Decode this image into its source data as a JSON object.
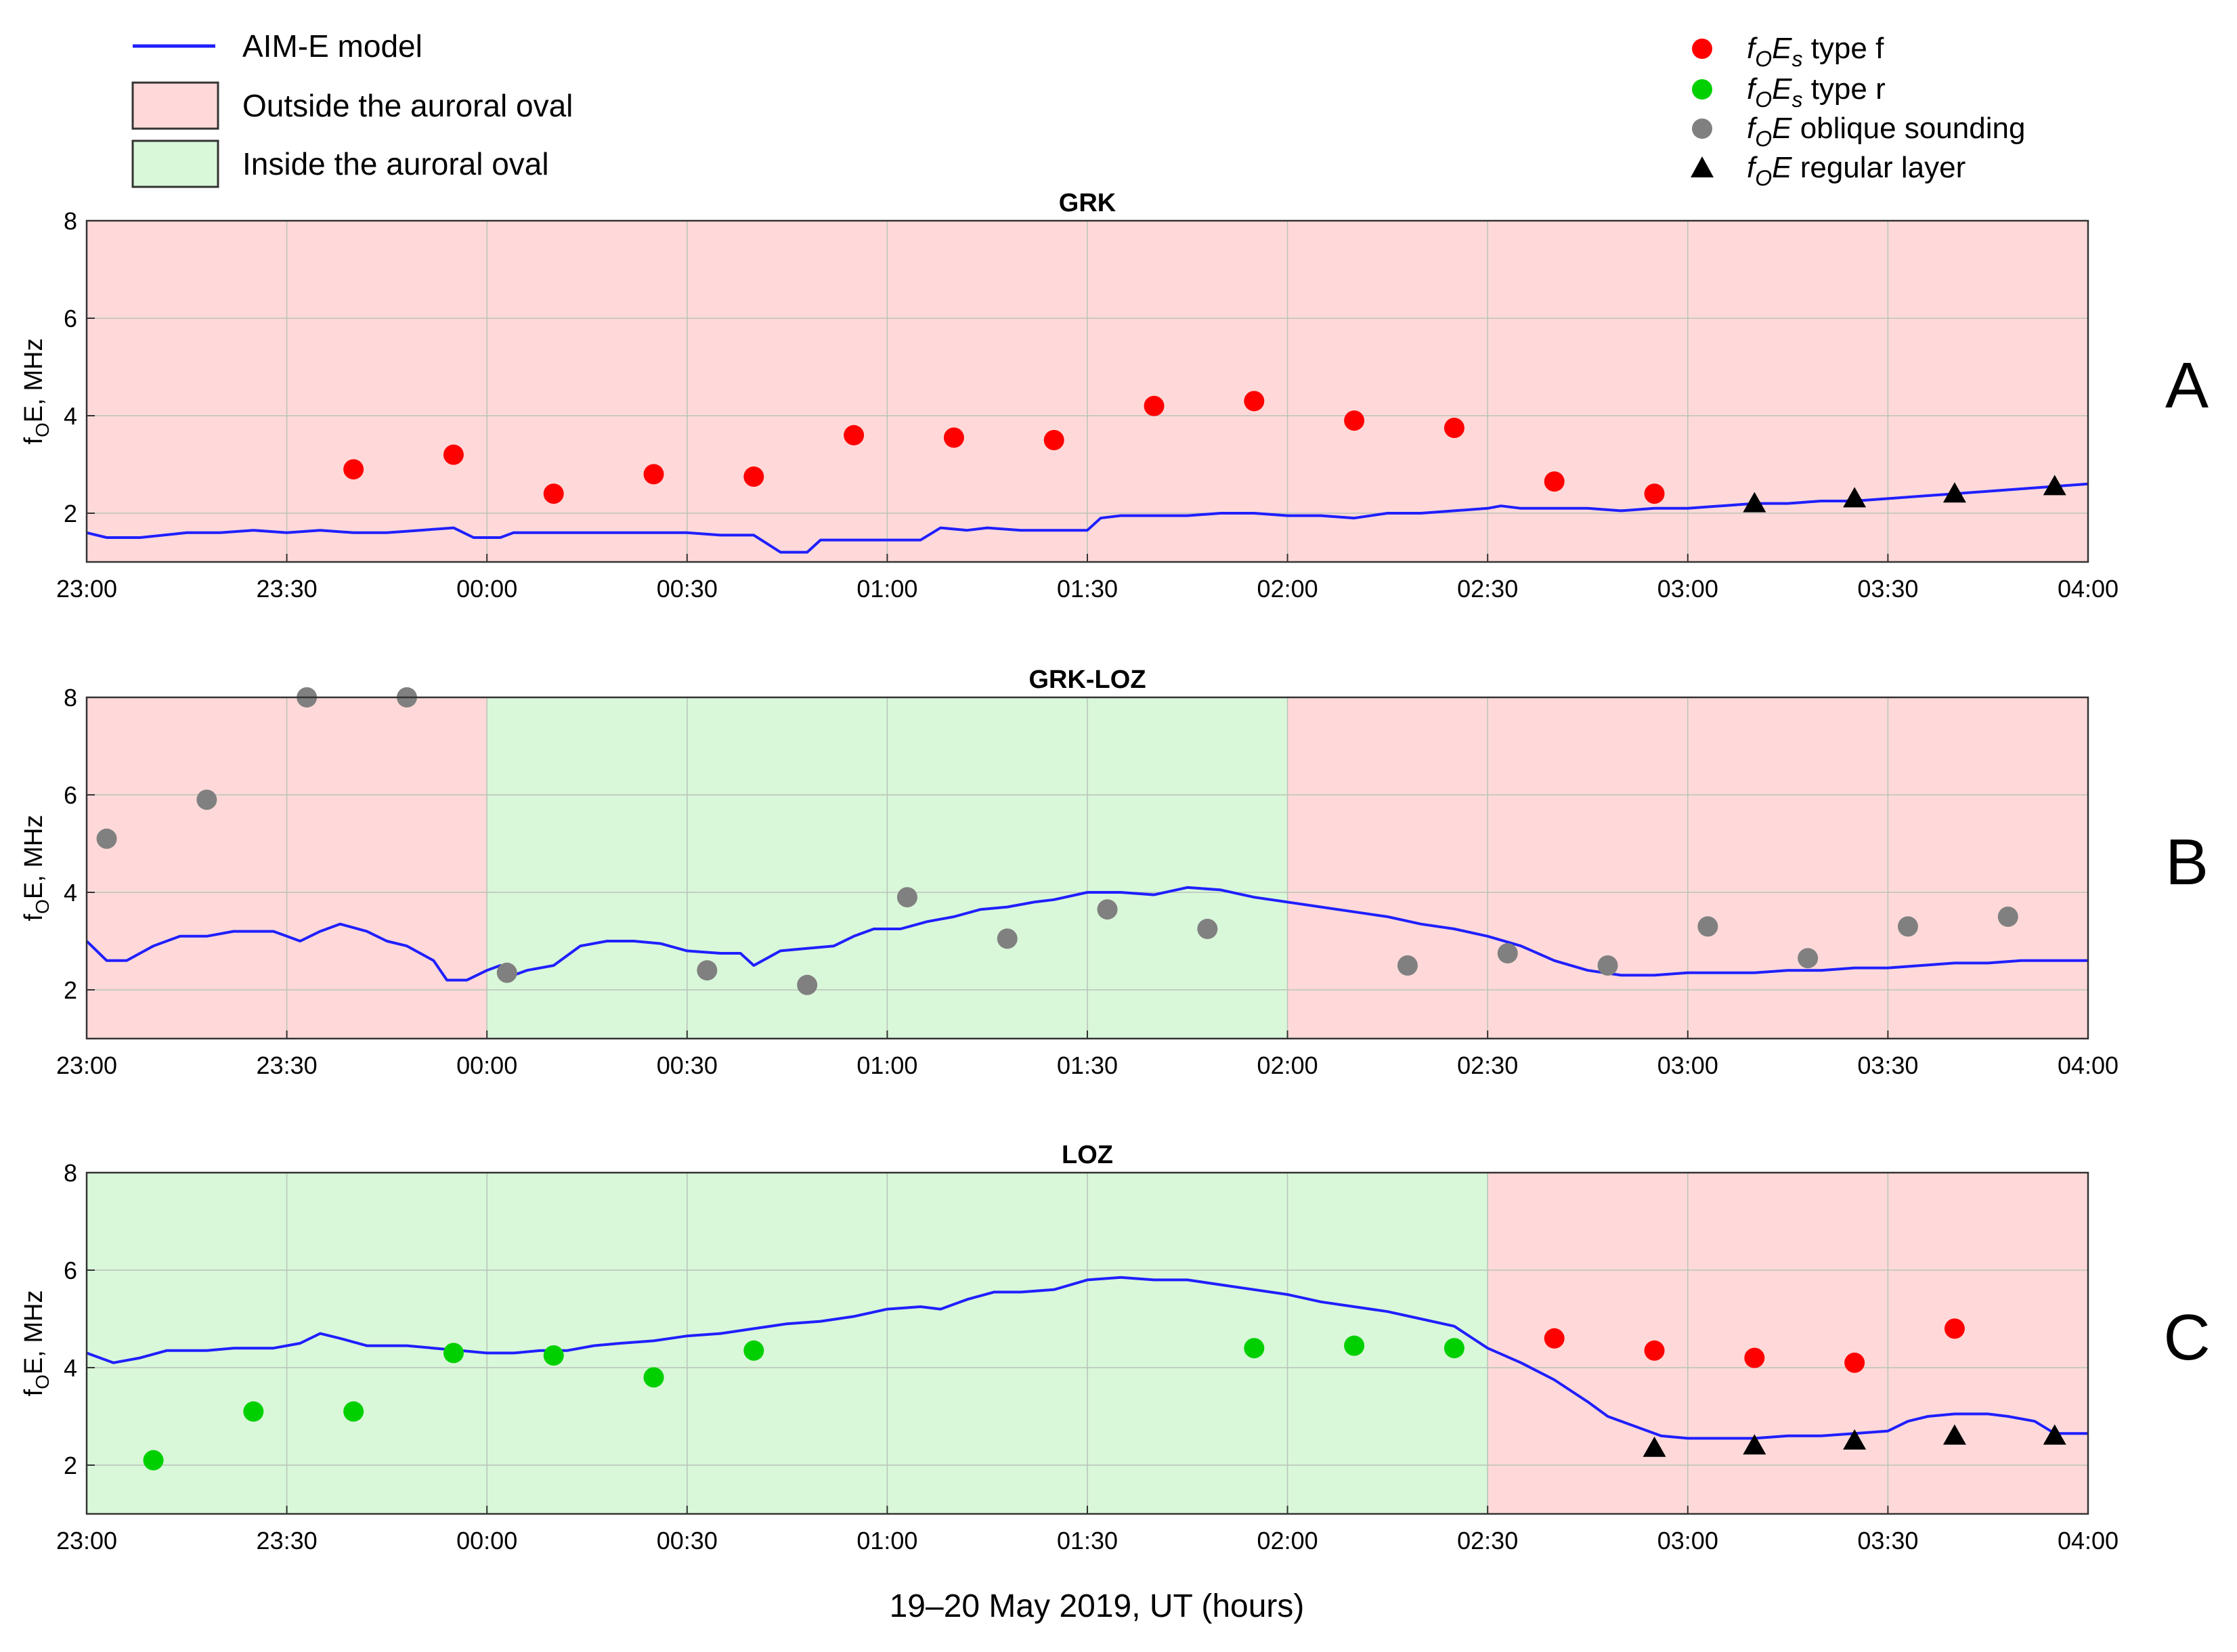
{
  "figure": {
    "xlabel": "19–20 May 2019, UT (hours)",
    "ylabel_prefix": "f",
    "ylabel_sub": "O",
    "ylabel_suffix": "E, MHz"
  },
  "legend_left": {
    "items": [
      {
        "kind": "line",
        "label": "AIM-E model",
        "color": "#1f1fff"
      },
      {
        "kind": "box",
        "label": "Outside the auroral oval",
        "color": "#ffd9d9"
      },
      {
        "kind": "box",
        "label": "Inside the auroral oval",
        "color": "#d9f7d9"
      }
    ]
  },
  "legend_right": {
    "items": [
      {
        "marker": "circle",
        "color": "#ff0000",
        "f": "f",
        "fsub": "O",
        "E": "E",
        "esub": "s",
        "label": " type f"
      },
      {
        "marker": "circle",
        "color": "#00d000",
        "f": "f",
        "fsub": "O",
        "E": "E",
        "esub": "s",
        "label": " type r"
      },
      {
        "marker": "circle",
        "color": "#808080",
        "f": "f",
        "fsub": "O",
        "E": "E",
        "esub": "",
        "label": " oblique sounding"
      },
      {
        "marker": "triangle",
        "color": "#000000",
        "f": "f",
        "fsub": "O",
        "E": "E",
        "esub": "",
        "label": " regular layer"
      }
    ]
  },
  "colors": {
    "outside": "#ffd9d9",
    "inside": "#d9f7d9",
    "model": "#1f1fff",
    "type_f": "#ff0000",
    "type_r": "#00d000",
    "oblique": "#808080",
    "regular": "#000000"
  },
  "chart_data": [
    {
      "type": "scatter",
      "title": "GRK",
      "panel_label": "A",
      "x_unit": "minutes after 23:00",
      "xlim": [
        0,
        300
      ],
      "ylim": [
        1,
        8
      ],
      "yticks": [
        2,
        4,
        6,
        8
      ],
      "xticks": [
        "23:00",
        "23:30",
        "00:00",
        "00:30",
        "01:00",
        "01:30",
        "02:00",
        "02:30",
        "03:00",
        "03:30",
        "04:00"
      ],
      "regions": [
        {
          "x0": 0,
          "x1": 300,
          "zone": "outside"
        }
      ],
      "model": [
        [
          0,
          1.6
        ],
        [
          3,
          1.5
        ],
        [
          8,
          1.5
        ],
        [
          15,
          1.6
        ],
        [
          20,
          1.6
        ],
        [
          25,
          1.65
        ],
        [
          30,
          1.6
        ],
        [
          35,
          1.65
        ],
        [
          40,
          1.6
        ],
        [
          45,
          1.6
        ],
        [
          50,
          1.65
        ],
        [
          55,
          1.7
        ],
        [
          58,
          1.5
        ],
        [
          62,
          1.5
        ],
        [
          64,
          1.6
        ],
        [
          68,
          1.6
        ],
        [
          75,
          1.6
        ],
        [
          85,
          1.6
        ],
        [
          90,
          1.6
        ],
        [
          95,
          1.55
        ],
        [
          100,
          1.55
        ],
        [
          104,
          1.2
        ],
        [
          108,
          1.2
        ],
        [
          110,
          1.45
        ],
        [
          115,
          1.45
        ],
        [
          120,
          1.45
        ],
        [
          125,
          1.45
        ],
        [
          128,
          1.7
        ],
        [
          132,
          1.65
        ],
        [
          135,
          1.7
        ],
        [
          140,
          1.65
        ],
        [
          145,
          1.65
        ],
        [
          150,
          1.65
        ],
        [
          152,
          1.9
        ],
        [
          155,
          1.95
        ],
        [
          160,
          1.95
        ],
        [
          165,
          1.95
        ],
        [
          170,
          2.0
        ],
        [
          175,
          2.0
        ],
        [
          180,
          1.95
        ],
        [
          185,
          1.95
        ],
        [
          190,
          1.9
        ],
        [
          195,
          2.0
        ],
        [
          200,
          2.0
        ],
        [
          205,
          2.05
        ],
        [
          210,
          2.1
        ],
        [
          212,
          2.15
        ],
        [
          215,
          2.1
        ],
        [
          220,
          2.1
        ],
        [
          225,
          2.1
        ],
        [
          230,
          2.05
        ],
        [
          235,
          2.1
        ],
        [
          240,
          2.1
        ],
        [
          245,
          2.15
        ],
        [
          250,
          2.2
        ],
        [
          255,
          2.2
        ],
        [
          260,
          2.25
        ],
        [
          265,
          2.25
        ],
        [
          270,
          2.3
        ],
        [
          275,
          2.35
        ],
        [
          280,
          2.4
        ],
        [
          285,
          2.45
        ],
        [
          290,
          2.5
        ],
        [
          295,
          2.55
        ],
        [
          300,
          2.6
        ]
      ],
      "series": [
        {
          "name": "type_f",
          "points": [
            [
              40,
              2.9
            ],
            [
              55,
              3.2
            ],
            [
              70,
              2.4
            ],
            [
              85,
              2.8
            ],
            [
              100,
              2.75
            ],
            [
              115,
              3.6
            ],
            [
              130,
              3.55
            ],
            [
              145,
              3.5
            ],
            [
              160,
              4.2
            ],
            [
              175,
              4.3
            ],
            [
              190,
              3.9
            ],
            [
              205,
              3.75
            ],
            [
              220,
              2.65
            ],
            [
              235,
              2.4
            ]
          ]
        },
        {
          "name": "regular",
          "points": [
            [
              250,
              2.2
            ],
            [
              265,
              2.3
            ],
            [
              280,
              2.4
            ],
            [
              295,
              2.55
            ]
          ]
        }
      ]
    },
    {
      "type": "scatter",
      "title": "GRK-LOZ",
      "panel_label": "B",
      "x_unit": "minutes after 23:00",
      "xlim": [
        0,
        300
      ],
      "ylim": [
        1,
        8
      ],
      "yticks": [
        2,
        4,
        6,
        8
      ],
      "xticks": [
        "23:00",
        "23:30",
        "00:00",
        "00:30",
        "01:00",
        "01:30",
        "02:00",
        "02:30",
        "03:00",
        "03:30",
        "04:00"
      ],
      "regions": [
        {
          "x0": 0,
          "x1": 60,
          "zone": "outside"
        },
        {
          "x0": 60,
          "x1": 180,
          "zone": "inside"
        },
        {
          "x0": 180,
          "x1": 300,
          "zone": "outside"
        }
      ],
      "model": [
        [
          0,
          3.0
        ],
        [
          3,
          2.6
        ],
        [
          6,
          2.6
        ],
        [
          10,
          2.9
        ],
        [
          14,
          3.1
        ],
        [
          18,
          3.1
        ],
        [
          22,
          3.2
        ],
        [
          28,
          3.2
        ],
        [
          30,
          3.1
        ],
        [
          32,
          3.0
        ],
        [
          35,
          3.2
        ],
        [
          38,
          3.35
        ],
        [
          42,
          3.2
        ],
        [
          45,
          3.0
        ],
        [
          48,
          2.9
        ],
        [
          52,
          2.6
        ],
        [
          54,
          2.2
        ],
        [
          57,
          2.2
        ],
        [
          60,
          2.4
        ],
        [
          62,
          2.5
        ],
        [
          64,
          2.3
        ],
        [
          66,
          2.4
        ],
        [
          70,
          2.5
        ],
        [
          74,
          2.9
        ],
        [
          78,
          3.0
        ],
        [
          82,
          3.0
        ],
        [
          86,
          2.95
        ],
        [
          90,
          2.8
        ],
        [
          95,
          2.75
        ],
        [
          98,
          2.75
        ],
        [
          100,
          2.5
        ],
        [
          104,
          2.8
        ],
        [
          108,
          2.85
        ],
        [
          112,
          2.9
        ],
        [
          115,
          3.1
        ],
        [
          118,
          3.25
        ],
        [
          122,
          3.25
        ],
        [
          126,
          3.4
        ],
        [
          130,
          3.5
        ],
        [
          134,
          3.65
        ],
        [
          138,
          3.7
        ],
        [
          142,
          3.8
        ],
        [
          145,
          3.85
        ],
        [
          150,
          4.0
        ],
        [
          155,
          4.0
        ],
        [
          160,
          3.95
        ],
        [
          165,
          4.1
        ],
        [
          170,
          4.05
        ],
        [
          175,
          3.9
        ],
        [
          180,
          3.8
        ],
        [
          185,
          3.7
        ],
        [
          190,
          3.6
        ],
        [
          195,
          3.5
        ],
        [
          200,
          3.35
        ],
        [
          205,
          3.25
        ],
        [
          210,
          3.1
        ],
        [
          215,
          2.9
        ],
        [
          220,
          2.6
        ],
        [
          225,
          2.4
        ],
        [
          230,
          2.3
        ],
        [
          235,
          2.3
        ],
        [
          240,
          2.35
        ],
        [
          245,
          2.35
        ],
        [
          250,
          2.35
        ],
        [
          255,
          2.4
        ],
        [
          260,
          2.4
        ],
        [
          265,
          2.45
        ],
        [
          270,
          2.45
        ],
        [
          275,
          2.5
        ],
        [
          280,
          2.55
        ],
        [
          285,
          2.55
        ],
        [
          290,
          2.6
        ],
        [
          295,
          2.6
        ],
        [
          300,
          2.6
        ]
      ],
      "series": [
        {
          "name": "oblique",
          "points": [
            [
              3,
              5.1
            ],
            [
              18,
              5.9
            ],
            [
              33,
              8.0
            ],
            [
              48,
              8.0
            ],
            [
              63,
              2.35
            ],
            [
              93,
              2.4
            ],
            [
              108,
              2.1
            ],
            [
              123,
              3.9
            ],
            [
              138,
              3.05
            ],
            [
              153,
              3.65
            ],
            [
              168,
              3.25
            ],
            [
              198,
              2.5
            ],
            [
              213,
              2.75
            ],
            [
              228,
              2.5
            ],
            [
              243,
              3.3
            ],
            [
              258,
              2.65
            ],
            [
              273,
              3.3
            ],
            [
              288,
              3.5
            ]
          ]
        }
      ]
    },
    {
      "type": "scatter",
      "title": "LOZ",
      "panel_label": "C",
      "x_unit": "minutes after 23:00",
      "xlim": [
        0,
        300
      ],
      "ylim": [
        1,
        8
      ],
      "yticks": [
        2,
        4,
        6,
        8
      ],
      "xticks": [
        "23:00",
        "23:30",
        "00:00",
        "00:30",
        "01:00",
        "01:30",
        "02:00",
        "02:30",
        "03:00",
        "03:30",
        "04:00"
      ],
      "regions": [
        {
          "x0": 0,
          "x1": 210,
          "zone": "inside"
        },
        {
          "x0": 210,
          "x1": 300,
          "zone": "outside"
        }
      ],
      "model": [
        [
          0,
          4.3
        ],
        [
          4,
          4.1
        ],
        [
          8,
          4.2
        ],
        [
          12,
          4.35
        ],
        [
          18,
          4.35
        ],
        [
          22,
          4.4
        ],
        [
          28,
          4.4
        ],
        [
          32,
          4.5
        ],
        [
          35,
          4.7
        ],
        [
          38,
          4.6
        ],
        [
          42,
          4.45
        ],
        [
          48,
          4.45
        ],
        [
          52,
          4.4
        ],
        [
          56,
          4.35
        ],
        [
          60,
          4.3
        ],
        [
          64,
          4.3
        ],
        [
          68,
          4.35
        ],
        [
          72,
          4.35
        ],
        [
          76,
          4.45
        ],
        [
          80,
          4.5
        ],
        [
          85,
          4.55
        ],
        [
          90,
          4.65
        ],
        [
          95,
          4.7
        ],
        [
          100,
          4.8
        ],
        [
          105,
          4.9
        ],
        [
          110,
          4.95
        ],
        [
          115,
          5.05
        ],
        [
          120,
          5.2
        ],
        [
          125,
          5.25
        ],
        [
          128,
          5.2
        ],
        [
          132,
          5.4
        ],
        [
          136,
          5.55
        ],
        [
          140,
          5.55
        ],
        [
          145,
          5.6
        ],
        [
          150,
          5.8
        ],
        [
          155,
          5.85
        ],
        [
          160,
          5.8
        ],
        [
          165,
          5.8
        ],
        [
          170,
          5.7
        ],
        [
          175,
          5.6
        ],
        [
          180,
          5.5
        ],
        [
          185,
          5.35
        ],
        [
          190,
          5.25
        ],
        [
          195,
          5.15
        ],
        [
          200,
          5.0
        ],
        [
          205,
          4.85
        ],
        [
          210,
          4.4
        ],
        [
          215,
          4.1
        ],
        [
          220,
          3.75
        ],
        [
          225,
          3.3
        ],
        [
          228,
          3.0
        ],
        [
          232,
          2.8
        ],
        [
          236,
          2.6
        ],
        [
          240,
          2.55
        ],
        [
          245,
          2.55
        ],
        [
          250,
          2.55
        ],
        [
          255,
          2.6
        ],
        [
          260,
          2.6
        ],
        [
          265,
          2.65
        ],
        [
          270,
          2.7
        ],
        [
          273,
          2.9
        ],
        [
          276,
          3.0
        ],
        [
          280,
          3.05
        ],
        [
          285,
          3.05
        ],
        [
          288,
          3.0
        ],
        [
          292,
          2.9
        ],
        [
          295,
          2.65
        ],
        [
          300,
          2.65
        ]
      ],
      "series": [
        {
          "name": "type_r",
          "points": [
            [
              10,
              2.1
            ],
            [
              25,
              3.1
            ],
            [
              40,
              3.1
            ],
            [
              55,
              4.3
            ],
            [
              70,
              4.25
            ],
            [
              85,
              3.8
            ],
            [
              100,
              4.35
            ],
            [
              175,
              4.4
            ],
            [
              190,
              4.45
            ],
            [
              205,
              4.4
            ]
          ]
        },
        {
          "name": "type_f",
          "points": [
            [
              220,
              4.6
            ],
            [
              235,
              4.35
            ],
            [
              250,
              4.2
            ],
            [
              265,
              4.1
            ],
            [
              280,
              4.8
            ]
          ]
        },
        {
          "name": "regular",
          "points": [
            [
              235,
              2.35
            ],
            [
              250,
              2.4
            ],
            [
              265,
              2.5
            ],
            [
              280,
              2.6
            ],
            [
              295,
              2.6
            ]
          ]
        }
      ]
    }
  ]
}
